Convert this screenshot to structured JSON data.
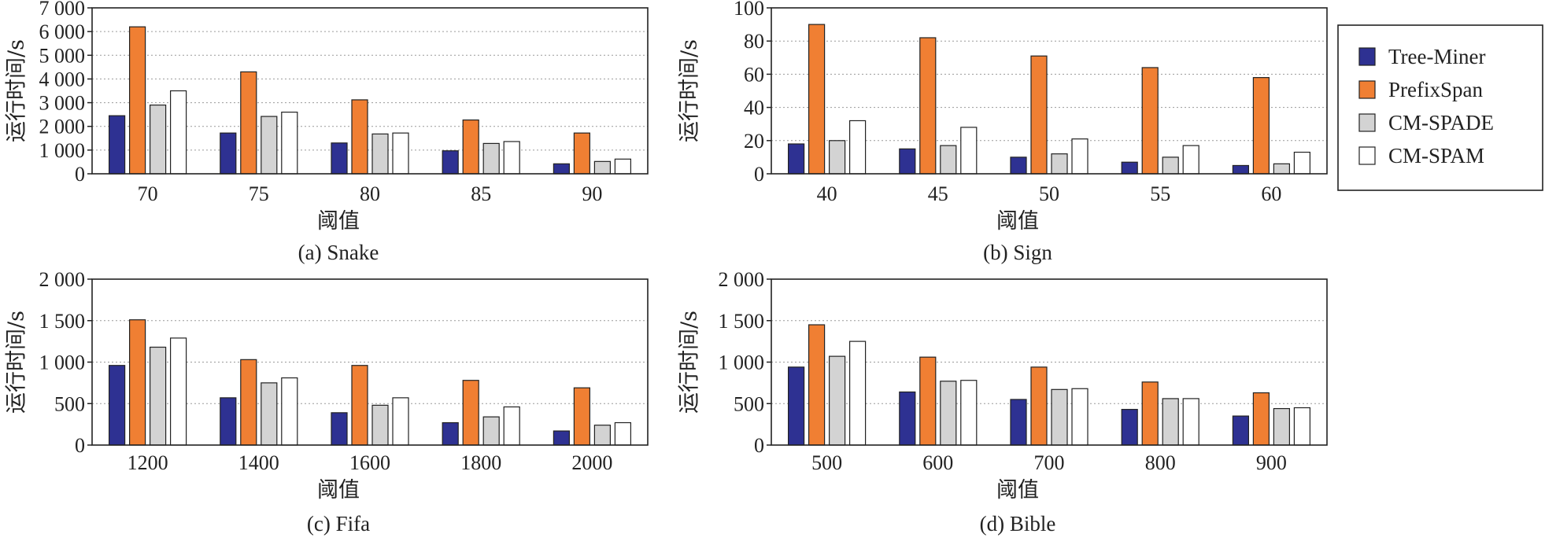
{
  "legend": [
    {
      "name": "Tree-Miner",
      "color": "#2e3192"
    },
    {
      "name": "PrefixSpan",
      "color": "#f07f33"
    },
    {
      "name": "CM-SPADE",
      "color": "#d3d3d3"
    },
    {
      "name": "CM-SPAM",
      "color": "#ffffff"
    }
  ],
  "chart_data": [
    {
      "type": "bar",
      "caption": "(a) Snake",
      "xlabel": "阈值",
      "ylabel": "运行时间/s",
      "categories": [
        "70",
        "75",
        "80",
        "85",
        "90"
      ],
      "ylim": [
        0,
        7000
      ],
      "yticks": [
        0,
        1000,
        2000,
        3000,
        4000,
        5000,
        6000,
        7000
      ],
      "ytick_labels": [
        "0",
        "1 000",
        "2 000",
        "3 000",
        "4 000",
        "5 000",
        "6 000",
        "7 000"
      ],
      "grid": true,
      "series": [
        {
          "name": "Tree-Miner",
          "values": [
            2450,
            1720,
            1300,
            970,
            420
          ]
        },
        {
          "name": "PrefixSpan",
          "values": [
            6200,
            4300,
            3120,
            2270,
            1720
          ]
        },
        {
          "name": "CM-SPADE",
          "values": [
            2900,
            2420,
            1680,
            1280,
            520
          ]
        },
        {
          "name": "CM-SPAM",
          "values": [
            3500,
            2600,
            1720,
            1360,
            620
          ]
        }
      ]
    },
    {
      "type": "bar",
      "caption": "(b) Sign",
      "xlabel": "阈值",
      "ylabel": "运行时间/s",
      "categories": [
        "40",
        "45",
        "50",
        "55",
        "60"
      ],
      "ylim": [
        0,
        100
      ],
      "yticks": [
        0,
        20,
        40,
        60,
        80,
        100
      ],
      "ytick_labels": [
        "0",
        "20",
        "40",
        "60",
        "80",
        "100"
      ],
      "grid": true,
      "series": [
        {
          "name": "Tree-Miner",
          "values": [
            18,
            15,
            10,
            7,
            5
          ]
        },
        {
          "name": "PrefixSpan",
          "values": [
            90,
            82,
            71,
            64,
            58
          ]
        },
        {
          "name": "CM-SPADE",
          "values": [
            20,
            17,
            12,
            10,
            6
          ]
        },
        {
          "name": "CM-SPAM",
          "values": [
            32,
            28,
            21,
            17,
            13
          ]
        }
      ]
    },
    {
      "type": "bar",
      "caption": "(c) Fifa",
      "xlabel": "阈值",
      "ylabel": "运行时间/s",
      "categories": [
        "1200",
        "1400",
        "1600",
        "1800",
        "2000"
      ],
      "ylim": [
        0,
        2000
      ],
      "yticks": [
        0,
        500,
        1000,
        1500,
        2000
      ],
      "ytick_labels": [
        "0",
        "500",
        "1 000",
        "1 500",
        "2 000"
      ],
      "grid": true,
      "series": [
        {
          "name": "Tree-Miner",
          "values": [
            960,
            570,
            390,
            270,
            170
          ]
        },
        {
          "name": "PrefixSpan",
          "values": [
            1510,
            1030,
            960,
            780,
            690
          ]
        },
        {
          "name": "CM-SPADE",
          "values": [
            1180,
            750,
            480,
            340,
            240
          ]
        },
        {
          "name": "CM-SPAM",
          "values": [
            1290,
            810,
            570,
            460,
            270
          ]
        }
      ]
    },
    {
      "type": "bar",
      "caption": "(d) Bible",
      "xlabel": "阈值",
      "ylabel": "运行时间/s",
      "categories": [
        "500",
        "600",
        "700",
        "800",
        "900"
      ],
      "ylim": [
        0,
        2000
      ],
      "yticks": [
        0,
        500,
        1000,
        1500,
        2000
      ],
      "ytick_labels": [
        "0",
        "500",
        "1 000",
        "1 500",
        "2 000"
      ],
      "grid": true,
      "series": [
        {
          "name": "Tree-Miner",
          "values": [
            940,
            640,
            550,
            430,
            350
          ]
        },
        {
          "name": "PrefixSpan",
          "values": [
            1450,
            1060,
            940,
            760,
            630
          ]
        },
        {
          "name": "CM-SPADE",
          "values": [
            1070,
            770,
            670,
            560,
            440
          ]
        },
        {
          "name": "CM-SPAM",
          "values": [
            1250,
            780,
            680,
            560,
            450
          ]
        }
      ]
    }
  ]
}
